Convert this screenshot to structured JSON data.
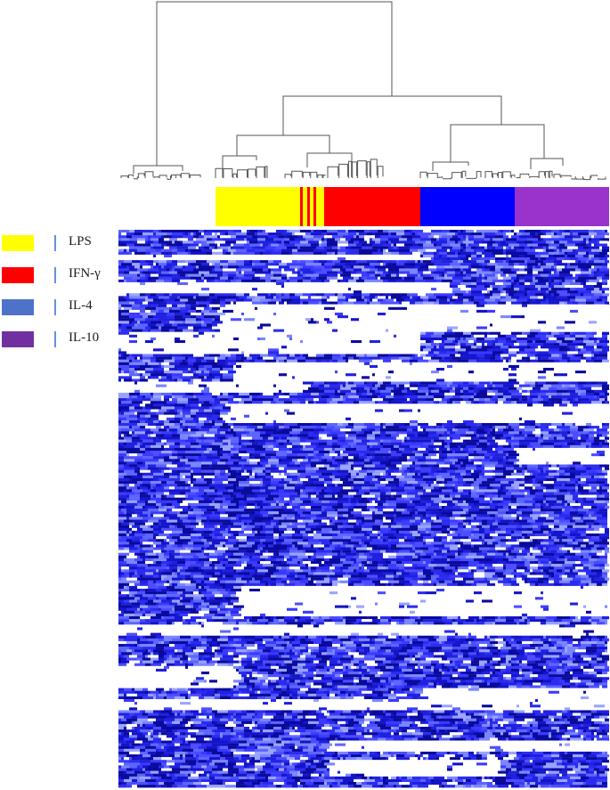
{
  "chart_data": {
    "type": "heatmap",
    "title": "",
    "annotation": {
      "order": [
        "LPS",
        "LPS",
        "LPS",
        "LPS",
        "LPS",
        "IFN-γ",
        "LPS",
        "IFN-γ",
        "LPS",
        "IFN-γ",
        "IFN-γ",
        "IFN-γ",
        "IFN-γ",
        "IFN-γ",
        "IFN-γ",
        "IL-4",
        "IL-4",
        "IL-4",
        "IL-4",
        "IL-4",
        "IL-10",
        "IL-10",
        "IL-10",
        "IL-10"
      ]
    },
    "groups": [
      {
        "name": "LPS",
        "color": "#ffff00"
      },
      {
        "name": "IFN-γ",
        "color": "#ff0000"
      },
      {
        "name": "IL-4",
        "color": "#0000ff"
      },
      {
        "name": "IL-10",
        "color": "#9933cc"
      }
    ],
    "cell_colors": {
      "low": "#ffffff",
      "mid": "#3333ee",
      "high": "#000088"
    }
  },
  "legend": {
    "items": [
      {
        "label": "LPS",
        "color": "#ffff00"
      },
      {
        "label": "IFN-γ",
        "color": "#ff0000"
      },
      {
        "label": "IL-4",
        "color": "#4d72c8"
      },
      {
        "label": "IL-10",
        "color": "#7030a0"
      }
    ]
  }
}
